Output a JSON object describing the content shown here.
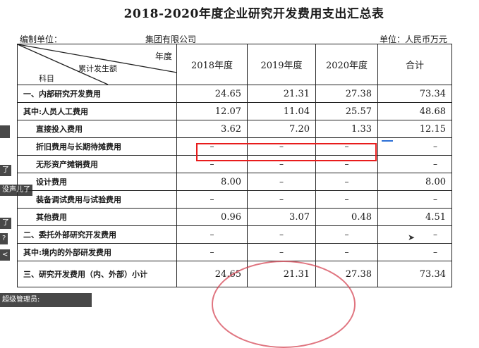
{
  "document": {
    "title": "2018-2020年度企业研究开发费用支出汇总表",
    "unit_label": "编制单位：",
    "company": "集团有限公司",
    "currency_unit": "单位：人民币万元"
  },
  "table": {
    "header_diag": {
      "year": "年度",
      "amount": "累计发生额",
      "subject": "科目"
    },
    "columns": [
      "2018年度",
      "2019年度",
      "2020年度",
      "合计"
    ],
    "rows": [
      {
        "label": "一、内部研究开发费用",
        "indent": false,
        "values": [
          "24.65",
          "21.31",
          "27.38",
          "73.34"
        ]
      },
      {
        "label": "其中:人员人工费用",
        "indent": false,
        "values": [
          "12.07",
          "11.04",
          "25.57",
          "48.68"
        ]
      },
      {
        "label": "直接投入费用",
        "indent": true,
        "values": [
          "3.62",
          "7.20",
          "1.33",
          "12.15"
        ]
      },
      {
        "label": "折旧费用与长期待摊费用",
        "indent": true,
        "values": [
          "–",
          "–",
          "–",
          "–"
        ]
      },
      {
        "label": "无形资产摊销费用",
        "indent": true,
        "values": [
          "–",
          "–",
          "–",
          "–"
        ]
      },
      {
        "label": "设计费用",
        "indent": true,
        "values": [
          "8.00",
          "–",
          "–",
          "8.00"
        ]
      },
      {
        "label": "装备调试费用与试验费用",
        "indent": true,
        "values": [
          "–",
          "–",
          "–",
          "–"
        ]
      },
      {
        "label": "其他费用",
        "indent": true,
        "values": [
          "0.96",
          "3.07",
          "0.48",
          "4.51"
        ]
      },
      {
        "label": "二、委托外部研究开发费用",
        "indent": false,
        "values": [
          "–",
          "–",
          "–",
          "–"
        ]
      },
      {
        "label": "其中:境内的外部研发费用",
        "indent": false,
        "values": [
          "–",
          "–",
          "–",
          "–"
        ]
      },
      {
        "label": "三、研究开发费用（内、外部）小计",
        "indent": false,
        "values": [
          "24.65",
          "21.31",
          "27.38",
          "73.34"
        ]
      }
    ]
  },
  "overlay": {
    "chat": [
      "了",
      "没声儿了",
      "了",
      "?",
      "<"
    ],
    "bottom_bar": "超级管理员:"
  },
  "colors": {
    "highlight": "#e81c1c",
    "stamp": "#d33a4a"
  }
}
